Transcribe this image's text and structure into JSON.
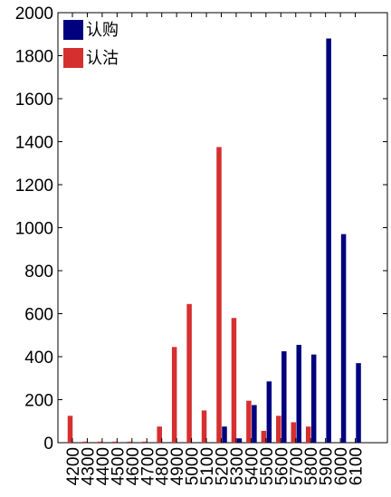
{
  "chart_data": {
    "type": "bar",
    "categories": [
      "4200",
      "4300",
      "4400",
      "4500",
      "4600",
      "4700",
      "4800",
      "4900",
      "5000",
      "5100",
      "5200",
      "5300",
      "5400",
      "5500",
      "5600",
      "5700",
      "5800",
      "5900",
      "6000",
      "6100"
    ],
    "series": [
      {
        "name": "认购",
        "color": "#00007f",
        "values": [
          0,
          0,
          0,
          0,
          0,
          0,
          0,
          0,
          0,
          0,
          75,
          20,
          175,
          285,
          425,
          455,
          410,
          1880,
          970,
          370
        ]
      },
      {
        "name": "认沽",
        "color": "#d62f2f",
        "values": [
          125,
          5,
          5,
          5,
          5,
          5,
          75,
          445,
          645,
          150,
          1375,
          580,
          195,
          55,
          125,
          95,
          75,
          0,
          0,
          0
        ]
      }
    ],
    "title": "",
    "xlabel": "",
    "ylabel": "",
    "ylim": [
      0,
      2000
    ],
    "yticks": [
      0,
      200,
      400,
      600,
      800,
      1000,
      1200,
      1400,
      1600,
      1800,
      2000
    ],
    "legend": "top-left",
    "grid": false
  }
}
